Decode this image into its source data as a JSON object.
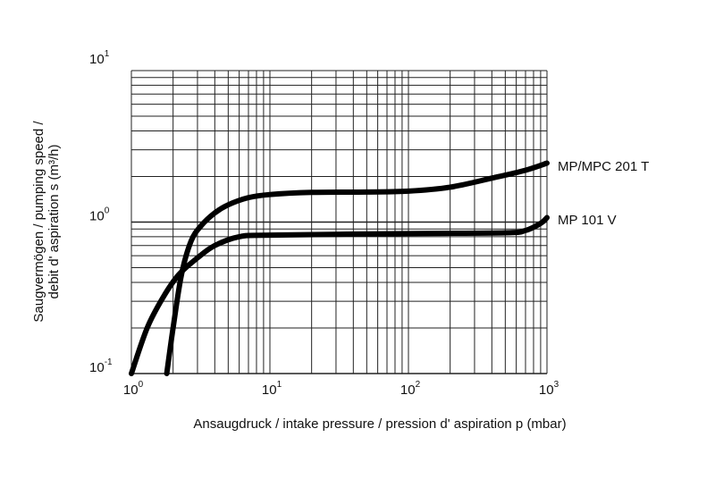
{
  "chart_data": {
    "type": "line",
    "title": "",
    "xlabel": "Ansaugdruck / intake pressure / pression d' aspiration p (mbar)",
    "ylabel_line1": "Saugvermögen / pumping speed /",
    "ylabel_line2": "debit d' aspiration s (m³/h)",
    "xscale": "log",
    "yscale": "log",
    "xlim": [
      1,
      1000
    ],
    "ylim": [
      0.1,
      10
    ],
    "grid": true,
    "x_ticks": [
      {
        "value": 1,
        "base": "10",
        "exp": "0"
      },
      {
        "value": 10,
        "base": "10",
        "exp": "1"
      },
      {
        "value": 100,
        "base": "10",
        "exp": "2"
      },
      {
        "value": 1000,
        "base": "10",
        "exp": "3"
      }
    ],
    "y_ticks": [
      {
        "value": 0.1,
        "base": "10",
        "exp": "-1"
      },
      {
        "value": 1,
        "base": "10",
        "exp": "0"
      },
      {
        "value": 10,
        "base": "10",
        "exp": "1"
      }
    ],
    "series": [
      {
        "name": "MP/MPC 201 T",
        "x": [
          1.8,
          2.0,
          2.3,
          2.7,
          3.2,
          4,
          5,
          7,
          10,
          20,
          50,
          100,
          200,
          400,
          700,
          1000
        ],
        "y": [
          0.1,
          0.2,
          0.45,
          0.75,
          0.95,
          1.15,
          1.3,
          1.45,
          1.52,
          1.57,
          1.58,
          1.6,
          1.7,
          1.95,
          2.2,
          2.45
        ]
      },
      {
        "name": "MP 101 V",
        "x": [
          1,
          1.3,
          1.7,
          2.2,
          3,
          4,
          6,
          10,
          100,
          500,
          700,
          900,
          1000
        ],
        "y": [
          0.1,
          0.2,
          0.32,
          0.45,
          0.58,
          0.7,
          0.8,
          0.82,
          0.84,
          0.85,
          0.88,
          0.98,
          1.07
        ]
      }
    ]
  }
}
